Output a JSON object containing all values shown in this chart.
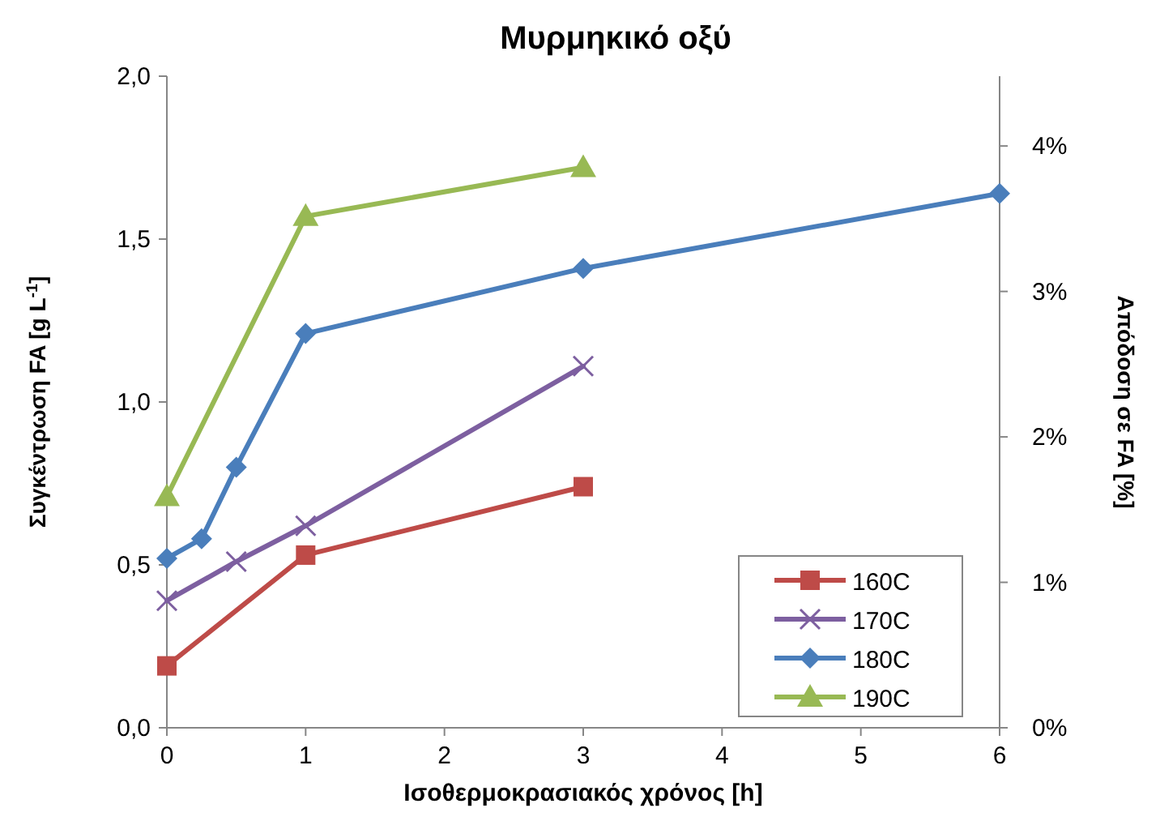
{
  "chart_data": {
    "type": "line",
    "title": "Μυρμηκικό οξύ",
    "xlabel": "Ισοθερμοκρασιακός χρόνος [h]",
    "ylabel": "Συγκέντρωση FA [g L$^{-1}$]",
    "y2label": "Απόδοση σε FA [%]",
    "xlim": [
      0,
      6
    ],
    "xticks": [
      0,
      1,
      2,
      3,
      4,
      5,
      6
    ],
    "ylim": [
      0,
      2
    ],
    "yticks": [
      {
        "value": 0,
        "label": "0,0"
      },
      {
        "value": 0.5,
        "label": "0,5"
      },
      {
        "value": 1,
        "label": "1,0"
      },
      {
        "value": 1.5,
        "label": "1,5"
      },
      {
        "value": 2,
        "label": "2,0"
      }
    ],
    "y2lim": [
      0,
      4.48
    ],
    "y2ticks": [
      {
        "value": 0,
        "label": "0%"
      },
      {
        "value": 1,
        "label": "1%"
      },
      {
        "value": 2,
        "label": "2%"
      },
      {
        "value": 3,
        "label": "3%"
      },
      {
        "value": 4,
        "label": "4%"
      }
    ],
    "grid": false,
    "legend": "bottom right",
    "line_style": "solid",
    "series": [
      {
        "name": "160C",
        "color": "#be4b48",
        "marker": "square",
        "x": [
          0,
          1,
          3
        ],
        "values": [
          0.19,
          0.53,
          0.74
        ]
      },
      {
        "name": "170C",
        "color": "#7d5fa0",
        "marker": "cross",
        "x": [
          0,
          0.5,
          1,
          3
        ],
        "values": [
          0.39,
          0.51,
          0.62,
          1.11
        ]
      },
      {
        "name": "180C",
        "color": "#4a7ebb",
        "marker": "diamond",
        "x": [
          0,
          0.25,
          0.5,
          1,
          3,
          6
        ],
        "values": [
          0.52,
          0.58,
          0.8,
          1.21,
          1.41,
          1.64
        ]
      },
      {
        "name": "190C",
        "color": "#98b954",
        "marker": "triangle",
        "x": [
          0,
          1,
          3
        ],
        "values": [
          0.71,
          1.57,
          1.72
        ]
      }
    ]
  }
}
